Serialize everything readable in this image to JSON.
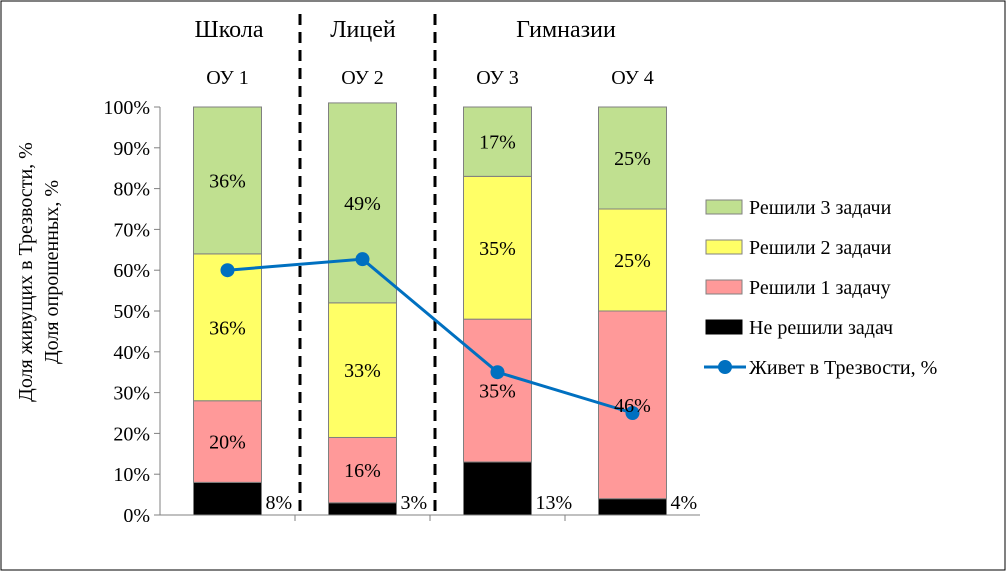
{
  "chart_data": {
    "type": "bar",
    "stacked": true,
    "ylabel_lines": [
      "Доля живущих в Трезвости, %",
      "Доля опрошенных, %"
    ],
    "ylim": [
      0,
      100
    ],
    "y_ticks": [
      "0%",
      "10%",
      "20%",
      "30%",
      "40%",
      "50%",
      "60%",
      "70%",
      "80%",
      "90%",
      "100%"
    ],
    "groups": [
      "Школа",
      "Лицей",
      "Гимназии"
    ],
    "categories": [
      "ОУ 1",
      "ОУ 2",
      "ОУ 3",
      "ОУ 4"
    ],
    "series": [
      {
        "name": "Не решили задач",
        "color": "#000000",
        "values": [
          8,
          3,
          13,
          4
        ],
        "labels": [
          "8%",
          "3%",
          "13%",
          "4%"
        ]
      },
      {
        "name": "Решили 1 задачу",
        "color": "#FF9999",
        "values": [
          20,
          16,
          35,
          46
        ],
        "labels": [
          "20%",
          "16%",
          "35%",
          "46%"
        ]
      },
      {
        "name": "Решили 2 задачи",
        "color": "#FFFF66",
        "values": [
          36,
          33,
          35,
          25
        ],
        "labels": [
          "36%",
          "33%",
          "35%",
          "25%"
        ]
      },
      {
        "name": "Решили 3 задачи",
        "color": "#C0E090",
        "values": [
          36,
          49,
          17,
          25
        ],
        "labels": [
          "36%",
          "49%",
          "17%",
          "25%"
        ]
      }
    ],
    "line_series": {
      "name": "Живет в Трезвости, %",
      "color": "#0070C0",
      "values": [
        60,
        62.7,
        35,
        25
      ]
    },
    "legend_position": "right",
    "grid": false
  }
}
